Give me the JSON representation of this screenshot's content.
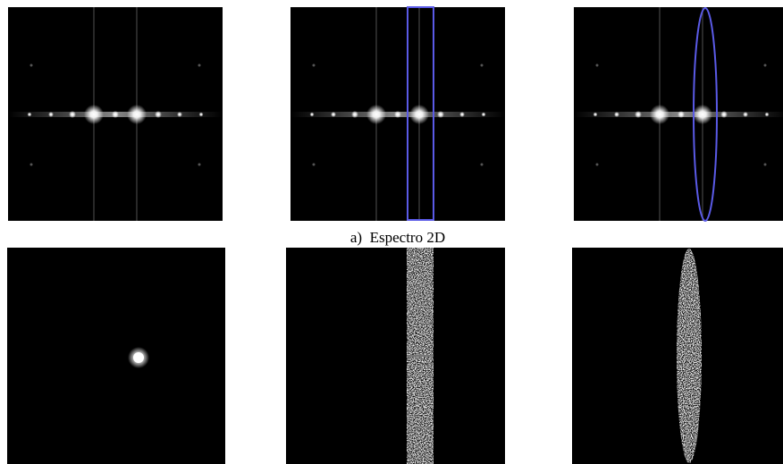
{
  "caption": "a)  Espectro 2D"
}
